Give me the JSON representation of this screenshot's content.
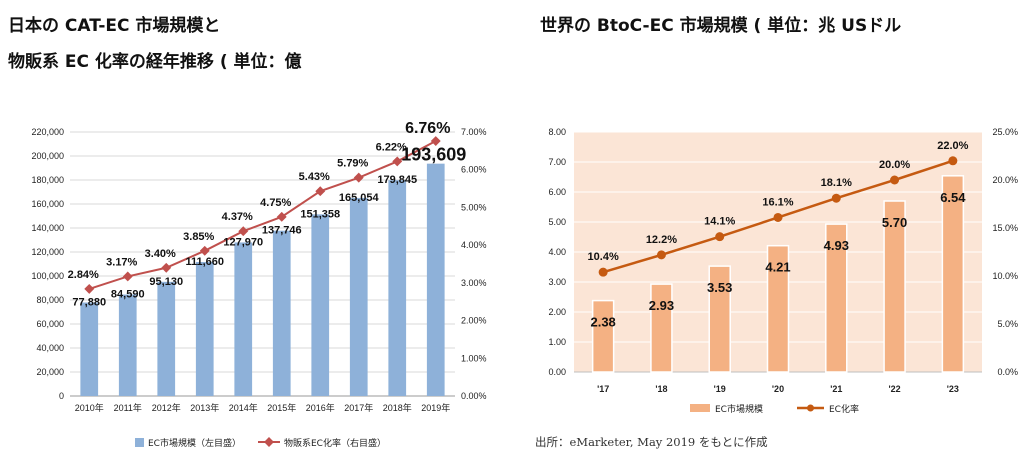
{
  "titles": {
    "chart1_line1": "日本の CAT-EC 市場規模と",
    "chart1_line2": "物販系 EC 化率の経年推移 ( 単位：億",
    "chart2": "世界の BtoC-EC 市場規模 ( 単位：兆 USドル"
  },
  "source": "出所：eMarketer, May 2019 をもとに作成",
  "chart_data": [
    {
      "type": "bar",
      "title": "",
      "categories": [
        "2010年",
        "2011年",
        "2012年",
        "2013年",
        "2014年",
        "2015年",
        "2016年",
        "2017年",
        "2018年",
        "2019年"
      ],
      "series": [
        {
          "name": "EC市場規模（左目盛）",
          "kind": "bar",
          "axis": "left",
          "values": [
            77880,
            84590,
            95130,
            111660,
            127970,
            137746,
            151358,
            165054,
            179845,
            193609
          ],
          "labels": [
            "77,880",
            "84,590",
            "95,130",
            "111,660",
            "127,970",
            "137,746",
            "151,358",
            "165,054",
            "179,845",
            "193,609"
          ]
        },
        {
          "name": "物販系EC化率（右目盛）",
          "kind": "line",
          "axis": "right",
          "values": [
            2.84,
            3.17,
            3.4,
            3.85,
            4.37,
            4.75,
            5.43,
            5.79,
            6.22,
            6.76
          ],
          "labels": [
            "2.84%",
            "3.17%",
            "3.40%",
            "3.85%",
            "4.37%",
            "4.75%",
            "5.43%",
            "5.79%",
            "6.22%",
            "6.76%"
          ]
        }
      ],
      "ylim_left": [
        0,
        220000
      ],
      "ylim_right": [
        0,
        7
      ],
      "yticks_left": [
        "0",
        "20,000",
        "40,000",
        "60,000",
        "80,000",
        "100,000",
        "120,000",
        "140,000",
        "160,000",
        "180,000",
        "200,000",
        "220,000"
      ],
      "yticks_right": [
        "0.00%",
        "1.00%",
        "2.00%",
        "3.00%",
        "4.00%",
        "5.00%",
        "6.00%",
        "7.00%"
      ],
      "grid": true,
      "legend_position": "bottom",
      "colors": {
        "bar": "#8eb1d9",
        "line": "#c0504d",
        "highlight_bar_label": "#1f3864",
        "highlight_line_label": "#c0262c"
      }
    },
    {
      "type": "bar",
      "title": "",
      "categories": [
        "'17",
        "'18",
        "'19",
        "'20",
        "'21",
        "'22",
        "'23"
      ],
      "series": [
        {
          "name": "EC市場規模",
          "kind": "bar",
          "axis": "left",
          "values": [
            2.38,
            2.93,
            3.53,
            4.21,
            4.93,
            5.7,
            6.54
          ],
          "labels": [
            "2.38",
            "2.93",
            "3.53",
            "4.21",
            "4.93",
            "5.70",
            "6.54"
          ]
        },
        {
          "name": "EC化率",
          "kind": "line",
          "axis": "right",
          "values": [
            10.4,
            12.2,
            14.1,
            16.1,
            18.1,
            20.0,
            22.0
          ],
          "labels": [
            "10.4%",
            "12.2%",
            "14.1%",
            "16.1%",
            "18.1%",
            "20.0%",
            "22.0%"
          ]
        }
      ],
      "ylim_left": [
        0,
        8
      ],
      "ylim_right": [
        0,
        25
      ],
      "yticks_left": [
        "0.00",
        "1.00",
        "2.00",
        "3.00",
        "4.00",
        "5.00",
        "6.00",
        "7.00",
        "8.00"
      ],
      "yticks_right": [
        "0.0%",
        "5.0%",
        "10.0%",
        "15.0%",
        "20.0%",
        "25.0%"
      ],
      "grid": true,
      "legend_position": "bottom",
      "colors": {
        "plot_bg": "#fbe5d6",
        "bar": "#f4b183",
        "bar_edge": "#ffffff",
        "line": "#c55a11"
      }
    }
  ]
}
